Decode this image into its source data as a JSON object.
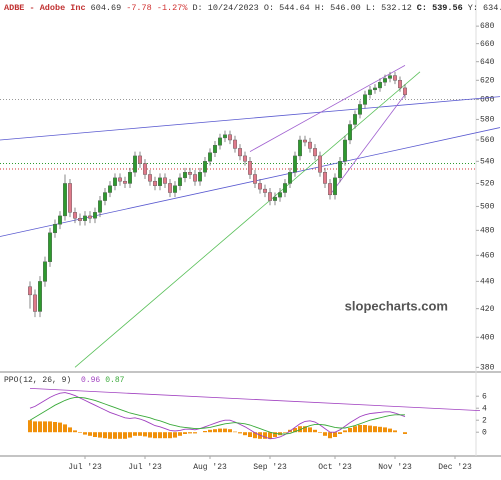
{
  "chart_data": {
    "type": "candlestick",
    "header": [
      {
        "text": "ADBE - Adobe Inc",
        "color": "#c03030",
        "bold": true
      },
      {
        "text": "604.69",
        "color": "#333",
        "bold": false
      },
      {
        "text": "-7.78 -1.27%",
        "color": "#d03030",
        "bold": false
      },
      {
        "text": "D: 10/24/2023 O: 544.64 H: 546.00 L: 532.12",
        "color": "#333",
        "bold": false
      },
      {
        "text": "C: 539.56",
        "color": "#222",
        "bold": true
      },
      {
        "text": "Y: 634.",
        "color": "#333",
        "bold": false
      }
    ],
    "watermark": "slopecharts.com",
    "log_scale": true,
    "xlim": [
      -6,
      94.2
    ],
    "ylim": [
      377,
      711
    ],
    "yticks": [
      380,
      400,
      420,
      440,
      460,
      480,
      500,
      520,
      540,
      560,
      580,
      600,
      620,
      640,
      660,
      680
    ],
    "xticks": [
      {
        "value": 11,
        "label": "Jul '23"
      },
      {
        "value": 23,
        "label": "Jul '23"
      },
      {
        "value": 36,
        "label": "Aug '23"
      },
      {
        "value": 48,
        "label": "Sep '23"
      },
      {
        "value": 61,
        "label": "Oct '23"
      },
      {
        "value": 73,
        "label": "Nov '23"
      },
      {
        "value": 85,
        "label": "Dec '23"
      }
    ],
    "up_color": "#2e9a2e",
    "down_color": "#e07a8a",
    "open": [
      436,
      430,
      418,
      440,
      455,
      478,
      485,
      492,
      520,
      495,
      490,
      488,
      492,
      490,
      495,
      505,
      512,
      518,
      525,
      522,
      520,
      530,
      545,
      538,
      528,
      522,
      518,
      525,
      520,
      512,
      518,
      525,
      530,
      528,
      522,
      530,
      540,
      548,
      555,
      562,
      565,
      560,
      552,
      545,
      540,
      528,
      520,
      515,
      512,
      505,
      508,
      512,
      520,
      530,
      545,
      560,
      558,
      552,
      545,
      530,
      520,
      510,
      525,
      540,
      560,
      575,
      585,
      595,
      605,
      610,
      612,
      618,
      622,
      625,
      620,
      612
    ],
    "high": [
      440,
      434,
      444,
      459,
      482,
      489,
      496,
      528,
      524,
      499,
      494,
      496,
      496,
      499,
      509,
      516,
      522,
      529,
      529,
      526,
      534,
      549,
      549,
      542,
      532,
      526,
      529,
      529,
      524,
      522,
      529,
      534,
      534,
      532,
      534,
      544,
      552,
      559,
      566,
      569,
      569,
      564,
      556,
      549,
      544,
      532,
      524,
      519,
      516,
      512,
      516,
      524,
      534,
      549,
      564,
      564,
      562,
      556,
      549,
      534,
      524,
      529,
      544,
      564,
      579,
      589,
      599,
      609,
      614,
      616,
      622,
      626,
      629,
      629,
      624,
      616
    ],
    "low": [
      420,
      414,
      414,
      436,
      451,
      474,
      481,
      488,
      491,
      486,
      484,
      484,
      486,
      486,
      491,
      501,
      508,
      514,
      518,
      516,
      516,
      526,
      534,
      524,
      518,
      514,
      514,
      516,
      508,
      508,
      514,
      521,
      524,
      518,
      518,
      526,
      536,
      544,
      551,
      558,
      556,
      548,
      541,
      536,
      524,
      516,
      511,
      508,
      501,
      501,
      504,
      508,
      516,
      526,
      541,
      554,
      548,
      541,
      526,
      516,
      506,
      506,
      521,
      536,
      556,
      571,
      581,
      591,
      601,
      606,
      608,
      614,
      618,
      616,
      608,
      601
    ],
    "close": [
      430,
      418,
      440,
      455,
      478,
      485,
      492,
      520,
      495,
      490,
      488,
      492,
      490,
      495,
      505,
      512,
      518,
      525,
      522,
      520,
      530,
      545,
      538,
      528,
      522,
      518,
      525,
      520,
      512,
      518,
      525,
      530,
      528,
      522,
      530,
      540,
      548,
      555,
      562,
      565,
      560,
      552,
      545,
      540,
      528,
      520,
      515,
      512,
      505,
      508,
      512,
      520,
      530,
      545,
      560,
      558,
      552,
      545,
      530,
      520,
      510,
      525,
      540,
      560,
      575,
      585,
      595,
      605,
      610,
      612,
      618,
      622,
      625,
      620,
      612,
      605
    ],
    "hlines": [
      {
        "value": 600,
        "color": "#999999",
        "dash": "1,2"
      },
      {
        "value": 538,
        "color": "#2e9a2e",
        "dash": "1,2"
      },
      {
        "value": 533,
        "color": "#d03030",
        "dash": "1,2"
      }
    ],
    "trendlines": [
      {
        "x": [
          -6,
          94
        ],
        "y": [
          560,
          603
        ],
        "color": "#5a5ad0"
      },
      {
        "x": [
          -6,
          94
        ],
        "y": [
          475,
          572
        ],
        "color": "#5a5ad0"
      },
      {
        "x": [
          44,
          75
        ],
        "y": [
          549,
          636
        ],
        "color": "#a060d0"
      },
      {
        "x": [
          60,
          75
        ],
        "y": [
          510,
          605
        ],
        "color": "#a060d0"
      },
      {
        "x": [
          9,
          78
        ],
        "y": [
          380,
          629
        ],
        "color": "#5ac05a"
      }
    ],
    "indicator": {
      "label": "PPO(12, 26, 9)",
      "ylim": [
        -3.8,
        9.7
      ],
      "yticks": [
        0,
        2,
        4,
        6
      ],
      "series": [
        {
          "name": "0.96",
          "color": "#a040c0",
          "values": [
            4.0,
            4.3,
            4.8,
            5.3,
            5.8,
            6.2,
            6.5,
            6.6,
            6.4,
            6.1,
            5.7,
            5.3,
            4.9,
            4.5,
            4.1,
            3.7,
            3.3,
            3.0,
            2.7,
            2.4,
            2.3,
            2.4,
            2.2,
            1.9,
            1.5,
            1.1,
            0.9,
            0.6,
            0.3,
            0.2,
            0.3,
            0.5,
            0.5,
            0.4,
            0.6,
            0.9,
            1.2,
            1.5,
            1.8,
            2.0,
            2.0,
            1.7,
            1.3,
            0.9,
            0.4,
            -0.1,
            -0.5,
            -0.8,
            -1.1,
            -1.0,
            -0.8,
            -0.4,
            0.2,
            0.8,
            1.4,
            1.8,
            1.9,
            1.7,
            1.2,
            0.6,
            0.0,
            0.0,
            0.4,
            1.0,
            1.6,
            2.1,
            2.6,
            2.9,
            3.1,
            3.2,
            3.3,
            3.4,
            3.4,
            3.2,
            2.9,
            2.6
          ]
        },
        {
          "name": "0.87",
          "color": "#3aaa3a",
          "values": [
            2.0,
            2.5,
            3.0,
            3.5,
            4.0,
            4.5,
            4.9,
            5.3,
            5.6,
            5.8,
            5.8,
            5.7,
            5.5,
            5.3,
            5.0,
            4.7,
            4.4,
            4.1,
            3.8,
            3.5,
            3.2,
            3.0,
            2.8,
            2.6,
            2.4,
            2.1,
            1.9,
            1.6,
            1.3,
            1.1,
            0.9,
            0.8,
            0.7,
            0.6,
            0.6,
            0.7,
            0.8,
            1.0,
            1.2,
            1.4,
            1.5,
            1.6,
            1.5,
            1.4,
            1.2,
            0.9,
            0.6,
            0.3,
            0.0,
            -0.2,
            -0.3,
            -0.3,
            -0.2,
            0.1,
            0.4,
            0.8,
            1.1,
            1.3,
            1.3,
            1.2,
            1.0,
            0.8,
            0.7,
            0.7,
            0.9,
            1.1,
            1.4,
            1.7,
            2.0,
            2.2,
            2.4,
            2.6,
            2.8,
            2.9,
            2.9,
            2.9
          ]
        }
      ],
      "histogram": {
        "color": "#f0900a",
        "values": [
          2.0,
          1.8,
          1.8,
          1.8,
          1.8,
          1.7,
          1.6,
          1.3,
          0.8,
          0.3,
          -0.1,
          -0.4,
          -0.6,
          -0.8,
          -0.9,
          -1.0,
          -1.1,
          -1.1,
          -1.1,
          -1.1,
          -0.9,
          -0.6,
          -0.6,
          -0.7,
          -0.9,
          -1.0,
          -1.0,
          -1.0,
          -1.0,
          -0.9,
          -0.6,
          -0.3,
          -0.2,
          -0.2,
          0.0,
          0.2,
          0.4,
          0.5,
          0.6,
          0.6,
          0.5,
          0.1,
          -0.2,
          -0.5,
          -0.8,
          -1.0,
          -1.1,
          -1.1,
          -1.1,
          -0.8,
          -0.5,
          -0.1,
          0.4,
          0.7,
          1.0,
          1.0,
          0.8,
          0.4,
          -0.1,
          -0.6,
          -1.0,
          -0.8,
          -0.3,
          0.3,
          0.7,
          1.0,
          1.2,
          1.2,
          1.1,
          1.0,
          0.9,
          0.8,
          0.6,
          0.3,
          0.0,
          -0.3
        ]
      },
      "trendlines": [
        {
          "x": [
            0,
            90
          ],
          "y": [
            7.3,
            3.6
          ],
          "color": "#a040c0"
        }
      ]
    }
  }
}
